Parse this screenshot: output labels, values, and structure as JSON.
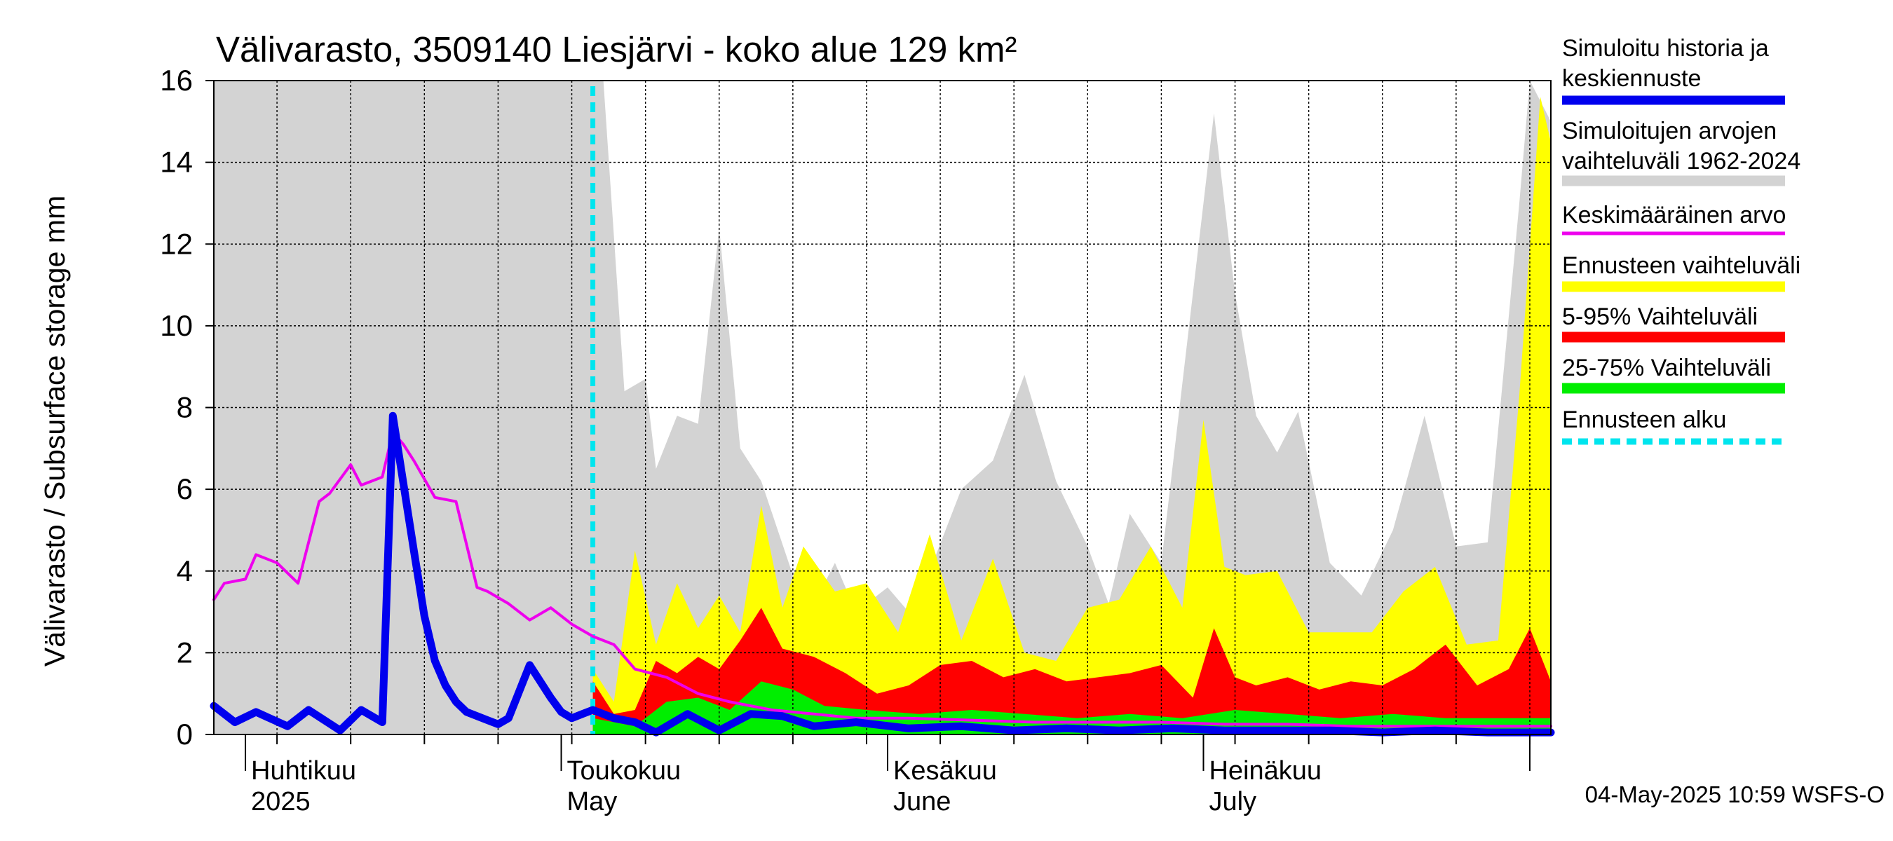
{
  "chart_data": {
    "type": "area",
    "title": "Välivarasto, 3509140 Liesjärvi - koko alue 129 km²",
    "ylabel": "Välivarasto / Subsurface storage  mm",
    "ylim": [
      0,
      16
    ],
    "yticks": [
      0,
      2,
      4,
      6,
      8,
      10,
      12,
      14,
      16
    ],
    "x_start": "2025-03-29",
    "x_end": "2025-08-03",
    "forecast_start": "2025-05-04",
    "month_labels": [
      {
        "date": "2025-04-01",
        "fi": "Huhtikuu",
        "en": "2025"
      },
      {
        "date": "2025-05-01",
        "fi": "Toukokuu",
        "en": "May"
      },
      {
        "date": "2025-06-01",
        "fi": "Kesäkuu",
        "en": "June"
      },
      {
        "date": "2025-07-01",
        "fi": "Heinäkuu",
        "en": "July"
      }
    ],
    "grid": true,
    "legend_position": "right",
    "legend": [
      {
        "label": "Simuloitu historia ja keskiennuste",
        "color": "#0000ee",
        "style": "line"
      },
      {
        "label": "Simuloitujen arvojen vaihteluväli 1962-2024",
        "color": "#d3d3d3",
        "style": "band"
      },
      {
        "label": "Keskimääräinen arvo",
        "color": "#ee00ee",
        "style": "line"
      },
      {
        "label": "Ennusteen vaihteluväli",
        "color": "#ffff00",
        "style": "band"
      },
      {
        "label": "5-95% Vaihteluväli",
        "color": "#ff0000",
        "style": "band"
      },
      {
        "label": "25-75% Vaihteluväli",
        "color": "#00ee00",
        "style": "band"
      },
      {
        "label": "Ennusteen alku",
        "color": "#00e5ee",
        "style": "dashed"
      }
    ],
    "series": [
      {
        "name": "Simuloitujen arvojen vaihteluväli 1962-2024",
        "kind": "band",
        "color": "#d3d3d3",
        "x": [
          "2025-03-29",
          "2025-05-05",
          "2025-05-07",
          "2025-05-09",
          "2025-05-10",
          "2025-05-12",
          "2025-05-14",
          "2025-05-16",
          "2025-05-18",
          "2025-05-20",
          "2025-05-23",
          "2025-05-25",
          "2025-05-27",
          "2025-05-29",
          "2025-06-01",
          "2025-06-03",
          "2025-06-05",
          "2025-06-08",
          "2025-06-11",
          "2025-06-14",
          "2025-06-17",
          "2025-06-20",
          "2025-06-22",
          "2025-06-24",
          "2025-06-27",
          "2025-06-30",
          "2025-07-02",
          "2025-07-04",
          "2025-07-06",
          "2025-07-08",
          "2025-07-10",
          "2025-07-13",
          "2025-07-16",
          "2025-07-19",
          "2025-07-22",
          "2025-07-25",
          "2025-07-28",
          "2025-07-31",
          "2025-08-01",
          "2025-08-03"
        ],
        "low": [
          0,
          0,
          0,
          0,
          0,
          0,
          0,
          0,
          0,
          0,
          0,
          0,
          0,
          0,
          0,
          0,
          0,
          0,
          0,
          0,
          0,
          0,
          0,
          0,
          0,
          0,
          0,
          0,
          0,
          0,
          0,
          0,
          0,
          0,
          0,
          0,
          0,
          0,
          0,
          0
        ],
        "high": [
          16,
          16,
          8.4,
          8.7,
          6.5,
          7.8,
          7.6,
          12.4,
          7.0,
          6.2,
          3.9,
          3.2,
          4.2,
          3.0,
          3.6,
          3.0,
          4.0,
          6.0,
          6.7,
          8.8,
          6.2,
          4.6,
          3.2,
          5.4,
          4.2,
          10.8,
          15.2,
          10.8,
          7.8,
          6.9,
          7.9,
          4.2,
          3.4,
          5.0,
          7.8,
          4.6,
          4.7,
          13.0,
          16.0,
          15.0
        ]
      },
      {
        "name": "Ennusteen vaihteluväli",
        "kind": "band",
        "color": "#ffff00",
        "x": [
          "2025-05-04",
          "2025-05-06",
          "2025-05-08",
          "2025-05-10",
          "2025-05-12",
          "2025-05-14",
          "2025-05-16",
          "2025-05-18",
          "2025-05-20",
          "2025-05-22",
          "2025-05-24",
          "2025-05-27",
          "2025-05-30",
          "2025-06-02",
          "2025-06-05",
          "2025-06-08",
          "2025-06-11",
          "2025-06-14",
          "2025-06-17",
          "2025-06-20",
          "2025-06-23",
          "2025-06-26",
          "2025-06-29",
          "2025-07-01",
          "2025-07-03",
          "2025-07-05",
          "2025-07-08",
          "2025-07-11",
          "2025-07-14",
          "2025-07-17",
          "2025-07-20",
          "2025-07-23",
          "2025-07-26",
          "2025-07-29",
          "2025-07-31",
          "2025-08-02",
          "2025-08-03"
        ],
        "low": [
          0,
          0,
          0,
          0,
          0,
          0,
          0,
          0,
          0,
          0,
          0,
          0,
          0,
          0,
          0,
          0,
          0,
          0,
          0,
          0,
          0,
          0,
          0,
          0,
          0,
          0,
          0,
          0,
          0,
          0,
          0,
          0,
          0,
          0,
          0,
          0,
          0
        ],
        "high": [
          1.6,
          0.8,
          4.5,
          2.2,
          3.7,
          2.6,
          3.4,
          2.5,
          5.6,
          3.1,
          4.6,
          3.5,
          3.7,
          2.5,
          4.9,
          2.3,
          4.3,
          2.0,
          1.8,
          3.1,
          3.3,
          4.6,
          3.1,
          7.7,
          4.1,
          3.9,
          4.0,
          2.5,
          2.5,
          2.5,
          3.5,
          4.1,
          2.2,
          2.3,
          8.3,
          15.6,
          14.5
        ]
      },
      {
        "name": "5-95% Vaihteluväli",
        "kind": "band",
        "color": "#ff0000",
        "x": [
          "2025-05-04",
          "2025-05-06",
          "2025-05-08",
          "2025-05-10",
          "2025-05-12",
          "2025-05-14",
          "2025-05-16",
          "2025-05-18",
          "2025-05-20",
          "2025-05-22",
          "2025-05-25",
          "2025-05-28",
          "2025-05-31",
          "2025-06-03",
          "2025-06-06",
          "2025-06-09",
          "2025-06-12",
          "2025-06-15",
          "2025-06-18",
          "2025-06-21",
          "2025-06-24",
          "2025-06-27",
          "2025-06-30",
          "2025-07-02",
          "2025-07-04",
          "2025-07-06",
          "2025-07-09",
          "2025-07-12",
          "2025-07-15",
          "2025-07-18",
          "2025-07-21",
          "2025-07-24",
          "2025-07-27",
          "2025-07-30",
          "2025-08-01",
          "2025-08-03"
        ],
        "low": [
          0,
          0,
          0,
          0,
          0,
          0,
          0,
          0,
          0,
          0,
          0,
          0,
          0,
          0,
          0,
          0,
          0,
          0,
          0,
          0,
          0,
          0,
          0,
          0,
          0,
          0,
          0,
          0,
          0,
          0,
          0,
          0,
          0,
          0,
          0,
          0
        ],
        "high": [
          1.3,
          0.5,
          0.6,
          1.8,
          1.5,
          1.9,
          1.6,
          2.3,
          3.1,
          2.1,
          1.9,
          1.5,
          1.0,
          1.2,
          1.7,
          1.8,
          1.4,
          1.6,
          1.3,
          1.4,
          1.5,
          1.7,
          0.9,
          2.6,
          1.4,
          1.2,
          1.4,
          1.1,
          1.3,
          1.2,
          1.6,
          2.2,
          1.2,
          1.6,
          2.6,
          1.3
        ]
      },
      {
        "name": "25-75% Vaihteluväli",
        "kind": "band",
        "color": "#00ee00",
        "x": [
          "2025-05-04",
          "2025-05-08",
          "2025-05-11",
          "2025-05-14",
          "2025-05-17",
          "2025-05-20",
          "2025-05-23",
          "2025-05-26",
          "2025-05-30",
          "2025-06-04",
          "2025-06-09",
          "2025-06-14",
          "2025-06-19",
          "2025-06-24",
          "2025-06-29",
          "2025-07-04",
          "2025-07-09",
          "2025-07-14",
          "2025-07-19",
          "2025-07-24",
          "2025-07-29",
          "2025-08-03"
        ],
        "low": [
          0,
          0,
          0,
          0,
          0,
          0,
          0,
          0,
          0,
          0,
          0,
          0,
          0,
          0,
          0,
          0,
          0,
          0,
          0,
          0,
          0,
          0
        ],
        "high": [
          0.4,
          0.2,
          0.8,
          0.9,
          0.6,
          1.3,
          1.1,
          0.7,
          0.6,
          0.5,
          0.6,
          0.5,
          0.4,
          0.5,
          0.4,
          0.6,
          0.5,
          0.4,
          0.5,
          0.4,
          0.4,
          0.4
        ]
      },
      {
        "name": "Keskimääräinen arvo",
        "kind": "line",
        "color": "#ee00ee",
        "x": [
          "2025-03-29",
          "2025-03-30",
          "2025-04-01",
          "2025-04-02",
          "2025-04-04",
          "2025-04-06",
          "2025-04-08",
          "2025-04-09",
          "2025-04-11",
          "2025-04-12",
          "2025-04-14",
          "2025-04-15",
          "2025-04-16",
          "2025-04-17",
          "2025-04-19",
          "2025-04-21",
          "2025-04-23",
          "2025-04-24",
          "2025-04-26",
          "2025-04-28",
          "2025-04-30",
          "2025-05-02",
          "2025-05-04",
          "2025-05-06",
          "2025-05-08",
          "2025-05-11",
          "2025-05-14",
          "2025-05-17",
          "2025-05-21",
          "2025-05-25",
          "2025-05-29",
          "2025-06-03",
          "2025-06-09",
          "2025-06-15",
          "2025-06-21",
          "2025-06-27",
          "2025-07-03",
          "2025-07-09",
          "2025-07-15",
          "2025-07-21",
          "2025-07-27",
          "2025-08-03"
        ],
        "y": [
          3.3,
          3.7,
          3.8,
          4.4,
          4.2,
          3.7,
          5.7,
          5.9,
          6.6,
          6.1,
          6.3,
          7.4,
          7.1,
          6.7,
          5.8,
          5.7,
          3.6,
          3.5,
          3.2,
          2.8,
          3.1,
          2.7,
          2.4,
          2.2,
          1.6,
          1.4,
          1.0,
          0.8,
          0.6,
          0.5,
          0.4,
          0.4,
          0.35,
          0.3,
          0.3,
          0.3,
          0.25,
          0.25,
          0.2,
          0.2,
          0.2,
          0.2
        ]
      },
      {
        "name": "Simuloitu historia ja keskiennuste",
        "kind": "line",
        "color": "#0000ee",
        "x": [
          "2025-03-29",
          "2025-03-31",
          "2025-04-02",
          "2025-04-05",
          "2025-04-07",
          "2025-04-10",
          "2025-04-12",
          "2025-04-14",
          "2025-04-15",
          "2025-04-17",
          "2025-04-18",
          "2025-04-19",
          "2025-04-20",
          "2025-04-21",
          "2025-04-22",
          "2025-04-23",
          "2025-04-24",
          "2025-04-25",
          "2025-04-26",
          "2025-04-28",
          "2025-04-30",
          "2025-05-01",
          "2025-05-02",
          "2025-05-03",
          "2025-05-04",
          "2025-05-06",
          "2025-05-08",
          "2025-05-10",
          "2025-05-13",
          "2025-05-16",
          "2025-05-19",
          "2025-05-22",
          "2025-05-25",
          "2025-05-29",
          "2025-06-03",
          "2025-06-08",
          "2025-06-13",
          "2025-06-18",
          "2025-06-23",
          "2025-06-28",
          "2025-07-03",
          "2025-07-08",
          "2025-07-13",
          "2025-07-18",
          "2025-07-23",
          "2025-07-28",
          "2025-08-03"
        ],
        "y": [
          0.7,
          0.3,
          0.55,
          0.2,
          0.6,
          0.1,
          0.6,
          0.3,
          7.8,
          4.5,
          2.9,
          1.8,
          1.2,
          0.8,
          0.55,
          0.45,
          0.35,
          0.25,
          0.4,
          1.7,
          0.9,
          0.55,
          0.4,
          0.5,
          0.6,
          0.4,
          0.3,
          0.05,
          0.5,
          0.1,
          0.5,
          0.45,
          0.2,
          0.3,
          0.15,
          0.2,
          0.1,
          0.15,
          0.1,
          0.15,
          0.1,
          0.1,
          0.1,
          0.05,
          0.1,
          0.05,
          0.05
        ]
      }
    ]
  },
  "footer": {
    "timestamp": "04-May-2025 10:59 WSFS-O"
  }
}
